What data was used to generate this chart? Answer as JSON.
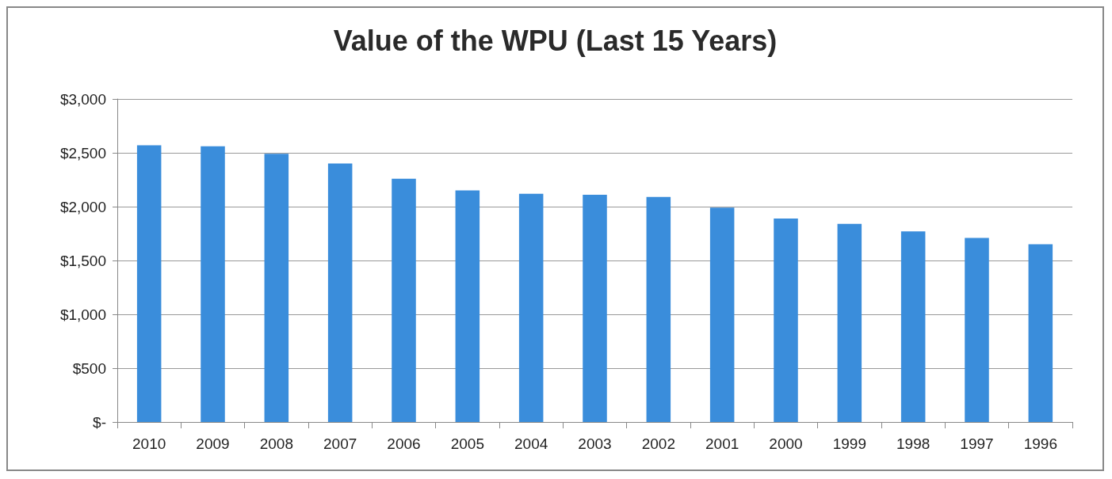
{
  "chart_data": {
    "type": "bar",
    "title": "Value of the WPU (Last 15 Years)",
    "categories": [
      "2010",
      "2009",
      "2008",
      "2007",
      "2006",
      "2005",
      "2004",
      "2003",
      "2002",
      "2001",
      "2000",
      "1999",
      "1998",
      "1997",
      "1996"
    ],
    "values": [
      2570,
      2560,
      2490,
      2400,
      2260,
      2150,
      2120,
      2110,
      2090,
      1990,
      1890,
      1840,
      1770,
      1710,
      1650
    ],
    "color": "#3a8ddb",
    "ylim": [
      0,
      3000
    ],
    "yticks": [
      {
        "value": 0,
        "label": "$-"
      },
      {
        "value": 500,
        "label": "$500"
      },
      {
        "value": 1000,
        "label": "$1,000"
      },
      {
        "value": 1500,
        "label": "$1,500"
      },
      {
        "value": 2000,
        "label": "$2,000"
      },
      {
        "value": 2500,
        "label": "$2,500"
      },
      {
        "value": 3000,
        "label": "$3,000"
      }
    ],
    "grid": true
  }
}
